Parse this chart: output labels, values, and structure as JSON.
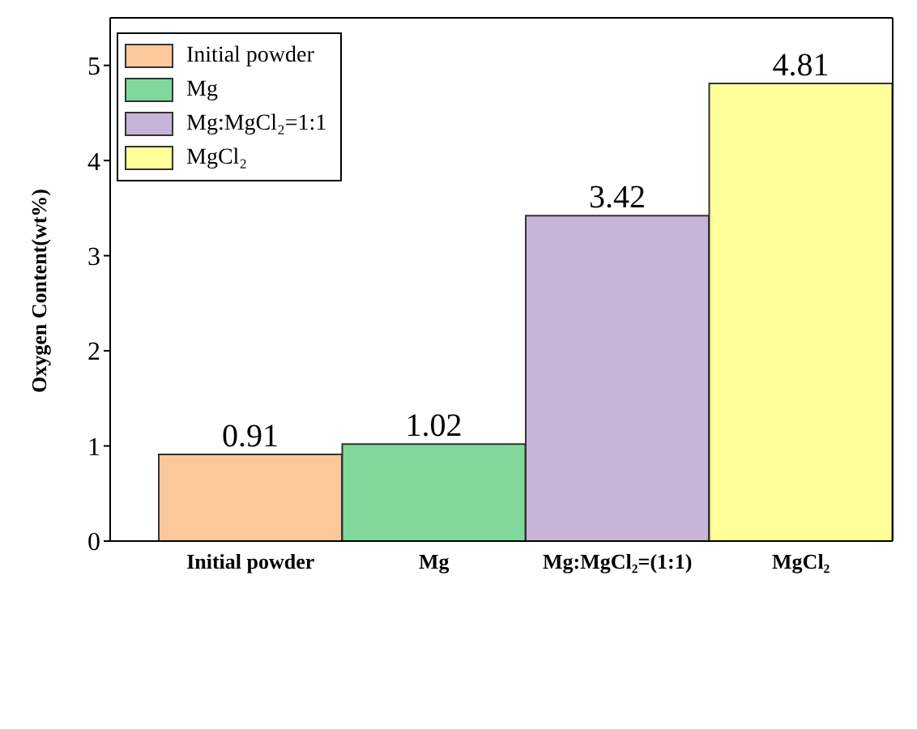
{
  "chart_data": {
    "type": "bar",
    "ylabel": "Oxygen Content(wt%)",
    "categories": [
      "Initial powder",
      "Mg",
      "Mg:MgCl₂=(1:1)",
      "MgCl₂"
    ],
    "series": [
      {
        "name": "Initial powder",
        "color": "#fcc89b",
        "values": [
          0.91,
          null,
          null,
          null
        ]
      },
      {
        "name": "Mg",
        "color": "#80d99b",
        "values": [
          null,
          1.02,
          null,
          null
        ]
      },
      {
        "name": "Mg:MgCl₂=1:1",
        "color": "#c8b3d9",
        "values": [
          null,
          null,
          3.42,
          null
        ]
      },
      {
        "name": "MgCl₂",
        "color": "#ffff99",
        "values": [
          null,
          null,
          null,
          4.81
        ]
      }
    ],
    "stacked": true,
    "ylim": [
      0,
      5.5
    ],
    "yticks": [
      0,
      1,
      2,
      3,
      4,
      5
    ],
    "data_labels": true,
    "grid": false,
    "legend": "top left"
  }
}
